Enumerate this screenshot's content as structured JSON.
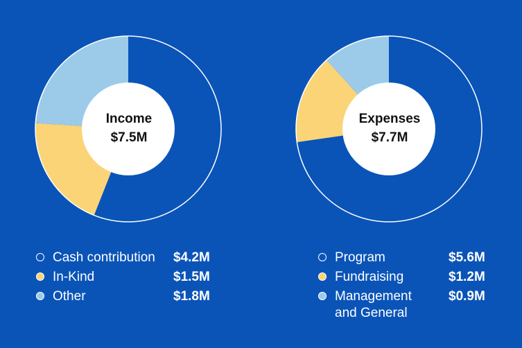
{
  "chart_data": [
    {
      "type": "pie",
      "title": "Income",
      "total": "$7.5M",
      "categories": [
        "Cash contribution",
        "In-Kind",
        "Other"
      ],
      "values": [
        4.2,
        1.5,
        1.8
      ],
      "value_labels": [
        "$4.2M",
        "$1.5M",
        "$1.8M"
      ],
      "colors": [
        "#0a54b8",
        "#fbd477",
        "#9ccbea"
      ]
    },
    {
      "type": "pie",
      "title": "Expenses",
      "total": "$7.7M",
      "categories": [
        "Program",
        "Fundraising",
        "Management and General"
      ],
      "values": [
        5.6,
        1.2,
        0.9
      ],
      "value_labels": [
        "$5.6M",
        "$1.2M",
        "$0.9M"
      ],
      "colors": [
        "#0a54b8",
        "#fbd477",
        "#9ccbea"
      ]
    }
  ],
  "theme": {
    "background": "#0a54b8",
    "center_fill": "#ffffff",
    "outline": "#ffffff"
  }
}
